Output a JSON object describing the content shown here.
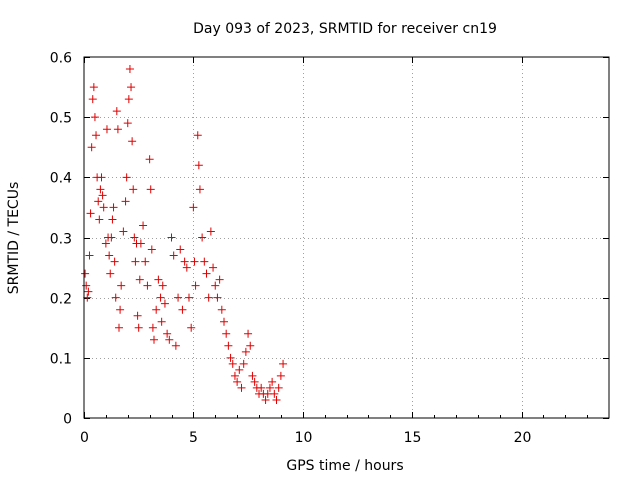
{
  "chart_data": {
    "type": "scatter",
    "title": "Day 093 of 2023, SRMTID for receiver cn19",
    "xlabel": "GPS time / hours",
    "ylabel": "SRMTID / TECUs",
    "xlim": [
      0,
      24
    ],
    "ylim": [
      0,
      0.6
    ],
    "xticks": [
      0,
      5,
      10,
      15,
      20
    ],
    "yticks": [
      0,
      0.1,
      0.2,
      0.3,
      0.4,
      0.5,
      0.6
    ],
    "xtick_labels": [
      "0",
      "5",
      "10",
      "15",
      "20"
    ],
    "ytick_labels": [
      "0",
      "0.1",
      "0.2",
      "0.3",
      "0.4",
      "0.5",
      "0.6"
    ],
    "grid": true,
    "marker": "+",
    "color": "#e00000",
    "series": [
      {
        "name": "SRMTID",
        "points": [
          [
            0.05,
            0.24
          ],
          [
            0.1,
            0.22
          ],
          [
            0.15,
            0.2
          ],
          [
            0.2,
            0.21
          ],
          [
            0.25,
            0.27
          ],
          [
            0.3,
            0.34
          ],
          [
            0.35,
            0.45
          ],
          [
            0.4,
            0.53
          ],
          [
            0.45,
            0.55
          ],
          [
            0.5,
            0.5
          ],
          [
            0.55,
            0.47
          ],
          [
            0.6,
            0.4
          ],
          [
            0.65,
            0.36
          ],
          [
            0.7,
            0.33
          ],
          [
            0.75,
            0.38
          ],
          [
            0.8,
            0.4
          ],
          [
            0.85,
            0.37
          ],
          [
            0.9,
            0.35
          ],
          [
            1.0,
            0.29
          ],
          [
            1.05,
            0.48
          ],
          [
            1.1,
            0.3
          ],
          [
            1.15,
            0.27
          ],
          [
            1.2,
            0.24
          ],
          [
            1.25,
            0.3
          ],
          [
            1.3,
            0.33
          ],
          [
            1.35,
            0.35
          ],
          [
            1.4,
            0.26
          ],
          [
            1.45,
            0.2
          ],
          [
            1.5,
            0.51
          ],
          [
            1.55,
            0.48
          ],
          [
            1.6,
            0.15
          ],
          [
            1.65,
            0.18
          ],
          [
            1.7,
            0.22
          ],
          [
            1.8,
            0.31
          ],
          [
            1.9,
            0.36
          ],
          [
            1.95,
            0.4
          ],
          [
            2.0,
            0.49
          ],
          [
            2.05,
            0.53
          ],
          [
            2.1,
            0.58
          ],
          [
            2.15,
            0.55
          ],
          [
            2.2,
            0.46
          ],
          [
            2.25,
            0.38
          ],
          [
            2.3,
            0.3
          ],
          [
            2.35,
            0.26
          ],
          [
            2.4,
            0.29
          ],
          [
            2.45,
            0.17
          ],
          [
            2.5,
            0.15
          ],
          [
            2.55,
            0.23
          ],
          [
            2.6,
            0.29
          ],
          [
            2.7,
            0.32
          ],
          [
            2.8,
            0.26
          ],
          [
            2.9,
            0.22
          ],
          [
            3.0,
            0.43
          ],
          [
            3.05,
            0.38
          ],
          [
            3.1,
            0.28
          ],
          [
            3.15,
            0.15
          ],
          [
            3.2,
            0.13
          ],
          [
            3.3,
            0.18
          ],
          [
            3.4,
            0.23
          ],
          [
            3.5,
            0.2
          ],
          [
            3.55,
            0.16
          ],
          [
            3.6,
            0.22
          ],
          [
            3.7,
            0.19
          ],
          [
            3.8,
            0.14
          ],
          [
            3.9,
            0.13
          ],
          [
            4.0,
            0.3
          ],
          [
            4.1,
            0.27
          ],
          [
            4.2,
            0.12
          ],
          [
            4.3,
            0.2
          ],
          [
            4.4,
            0.28
          ],
          [
            4.5,
            0.18
          ],
          [
            4.6,
            0.26
          ],
          [
            4.7,
            0.25
          ],
          [
            4.8,
            0.2
          ],
          [
            4.9,
            0.15
          ],
          [
            5.0,
            0.35
          ],
          [
            5.05,
            0.26
          ],
          [
            5.1,
            0.22
          ],
          [
            5.2,
            0.47
          ],
          [
            5.25,
            0.42
          ],
          [
            5.3,
            0.38
          ],
          [
            5.4,
            0.3
          ],
          [
            5.5,
            0.26
          ],
          [
            5.6,
            0.24
          ],
          [
            5.7,
            0.2
          ],
          [
            5.8,
            0.31
          ],
          [
            5.9,
            0.25
          ],
          [
            6.0,
            0.22
          ],
          [
            6.1,
            0.2
          ],
          [
            6.2,
            0.23
          ],
          [
            6.3,
            0.18
          ],
          [
            6.4,
            0.16
          ],
          [
            6.5,
            0.14
          ],
          [
            6.6,
            0.12
          ],
          [
            6.7,
            0.1
          ],
          [
            6.8,
            0.09
          ],
          [
            6.9,
            0.07
          ],
          [
            7.0,
            0.06
          ],
          [
            7.1,
            0.08
          ],
          [
            7.2,
            0.05
          ],
          [
            7.3,
            0.09
          ],
          [
            7.4,
            0.11
          ],
          [
            7.5,
            0.14
          ],
          [
            7.6,
            0.12
          ],
          [
            7.7,
            0.07
          ],
          [
            7.8,
            0.06
          ],
          [
            7.9,
            0.05
          ],
          [
            8.0,
            0.04
          ],
          [
            8.1,
            0.05
          ],
          [
            8.2,
            0.04
          ],
          [
            8.3,
            0.03
          ],
          [
            8.4,
            0.04
          ],
          [
            8.5,
            0.05
          ],
          [
            8.6,
            0.06
          ],
          [
            8.7,
            0.04
          ],
          [
            8.8,
            0.03
          ],
          [
            8.9,
            0.05
          ],
          [
            9.0,
            0.07
          ],
          [
            9.1,
            0.09
          ]
        ]
      }
    ]
  }
}
